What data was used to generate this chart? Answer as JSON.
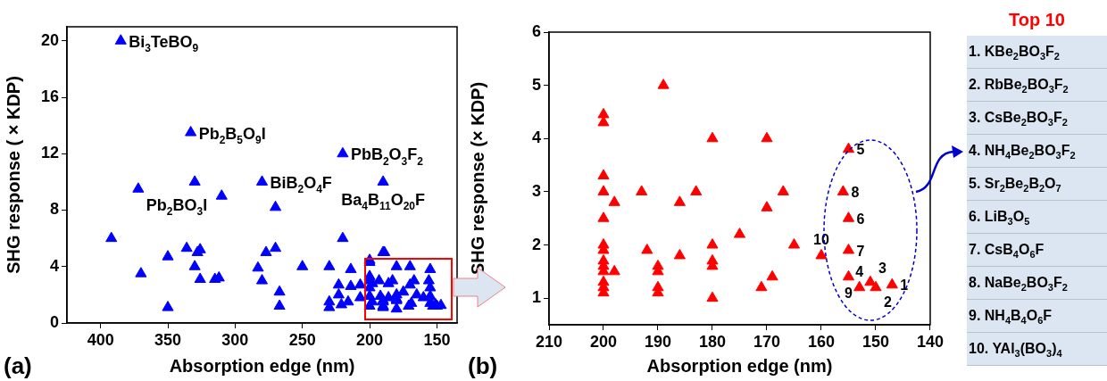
{
  "chart_data": [
    {
      "type": "scatter",
      "xlabel": "Absorption edge (nm)",
      "ylabel": "SHG response ( × KDP)",
      "xlim": [
        425,
        135
      ],
      "xticks": [
        400,
        350,
        300,
        250,
        200,
        150
      ],
      "ylim": [
        0,
        21
      ],
      "yticks": [
        0,
        4,
        8,
        12,
        16,
        20
      ],
      "marker": "triangle",
      "grid": false,
      "legend": false,
      "series": [
        {
          "color": "#0000ff",
          "x": [
            385,
            372,
            392,
            370,
            350,
            350,
            336,
            333,
            330,
            330,
            328,
            326,
            326,
            315,
            312,
            310,
            283,
            280,
            280,
            277,
            270,
            270,
            267,
            267,
            250,
            230,
            230,
            230,
            223,
            223,
            220,
            220,
            221,
            214,
            214,
            216,
            207,
            207,
            190,
            190,
            200,
            200,
            200,
            200,
            200,
            200,
            200,
            198,
            198,
            193,
            192,
            189,
            190,
            190,
            190,
            190,
            186,
            186,
            183,
            180,
            180,
            180,
            180,
            180,
            175,
            170,
            170,
            171,
            169,
            167,
            165,
            160,
            155,
            156,
            155,
            155,
            155,
            153,
            151,
            150,
            147
          ],
          "values": [
            20,
            9.5,
            6,
            3.5,
            4.7,
            1.1,
            5.3,
            13.5,
            10,
            4,
            5,
            5.2,
            3.1,
            3.1,
            3.2,
            9,
            3.9,
            10,
            3,
            5,
            5.3,
            8.2,
            2.2,
            1.2,
            4,
            4,
            1.5,
            1.1,
            2.7,
            2,
            6,
            12,
            1.3,
            3.8,
            2.6,
            1.5,
            2.7,
            1.8,
            10,
            5,
            4.45,
            4.3,
            3.3,
            3,
            2.5,
            1.9,
            1.2,
            2.8,
            1.5,
            3,
            1.9,
            5,
            1.6,
            1.5,
            1.2,
            1.1,
            2.8,
            1.8,
            3,
            4,
            2,
            1.7,
            1.6,
            1,
            2.2,
            4,
            2.7,
            1.2,
            1.4,
            3,
            2,
            1.8,
            3.8,
            3,
            2.5,
            1.9,
            1.4,
            1.2,
            1.3,
            1.2,
            1.25
          ]
        }
      ],
      "annotations": [
        {
          "text": "Bi$_{3}$TeBO$_{9}$",
          "x": 385,
          "y": 20
        },
        {
          "text": "Pb$_{2}$B$_{5}$O$_{9}$I",
          "x": 333,
          "y": 13.5
        },
        {
          "text": "Pb$_{2}$BO$_{3}$I",
          "x": 372,
          "y": 9.5
        },
        {
          "text": "BiB$_{2}$O$_{4}$F",
          "x": 280,
          "y": 10
        },
        {
          "text": "PbB$_{2}$O$_{3}$F$_{2}$",
          "x": 220,
          "y": 12
        },
        {
          "text": "Ba$_{4}$B$_{11}$O$_{20}$F",
          "x": 190,
          "y": 10
        },
        "(a)"
      ]
    },
    {
      "type": "scatter",
      "xlabel": "Absorption edge (nm)",
      "ylabel": "SHG response (× KDP)",
      "xlim": [
        210,
        140
      ],
      "xticks": [
        210,
        200,
        190,
        180,
        170,
        160,
        150,
        140
      ],
      "ylim": [
        0.5,
        6
      ],
      "yticks": [
        1,
        2,
        3,
        4,
        5,
        6
      ],
      "marker": "triangle",
      "grid": false,
      "legend": false,
      "series": [
        {
          "color": "#ff0000",
          "x": [
            200,
            200,
            200,
            200,
            200,
            200,
            200,
            200,
            200,
            200,
            200,
            200,
            200,
            198,
            198,
            193,
            192,
            189,
            190,
            190,
            190,
            190,
            186,
            186,
            183,
            180,
            180,
            180,
            180,
            180,
            175,
            170,
            170,
            171,
            169,
            167,
            165,
            160,
            155,
            156,
            155,
            155,
            155,
            153,
            151,
            150,
            147
          ],
          "values": [
            4.45,
            4.3,
            3.3,
            3,
            2.5,
            2,
            1.9,
            1.7,
            1.6,
            1.5,
            1.3,
            1.2,
            1.1,
            2.8,
            1.5,
            3,
            1.9,
            5,
            1.6,
            1.5,
            1.2,
            1.1,
            2.8,
            1.8,
            3,
            4,
            2,
            1.7,
            1.6,
            1,
            2.2,
            4,
            2.7,
            1.2,
            1.4,
            3,
            2,
            1.8,
            3.8,
            3,
            2.5,
            1.9,
            1.4,
            1.2,
            1.3,
            1.2,
            1.25
          ]
        }
      ],
      "annotations": [
        {
          "text": "1",
          "x": 147,
          "y": 1.25
        },
        {
          "text": "2",
          "x": 150,
          "y": 1.2
        },
        {
          "text": "3",
          "x": 151,
          "y": 1.3
        },
        {
          "text": "4",
          "x": 153,
          "y": 1.2
        },
        {
          "text": "5",
          "x": 155,
          "y": 3.8
        },
        {
          "text": "6",
          "x": 155,
          "y": 2.5
        },
        {
          "text": "7",
          "x": 155,
          "y": 1.9
        },
        {
          "text": "8",
          "x": 156,
          "y": 3
        },
        {
          "text": "9",
          "x": 155,
          "y": 1.4
        },
        {
          "text": "10",
          "x": 160,
          "y": 1.8
        },
        "(b)",
        "Top 10",
        "1. KBe$_{2}$BO$_{3}$F$_{2}$",
        "2. RbBe$_{2}$BO$_{3}$F$_{2}$",
        "3. CsBe$_{2}$BO$_{3}$F$_{2}$",
        "4. NH$_{4}$Be$_{2}$BO$_{3}$F$_{2}$",
        "5. Sr$_{2}$Be$_{2}$B$_{2}$O$_{7}$",
        "6. LiB$_{3}$O$_{5}$",
        "7. CsB$_{4}$O$_{6}$F",
        "8. NaBe$_{2}$BO$_{3}$F$_{2}$",
        "9. NH$_{4}$B$_{4}$O$_{6}$F",
        "10. YAl$_{3}$(BO$_{3}$)$_{4}$"
      ]
    }
  ]
}
